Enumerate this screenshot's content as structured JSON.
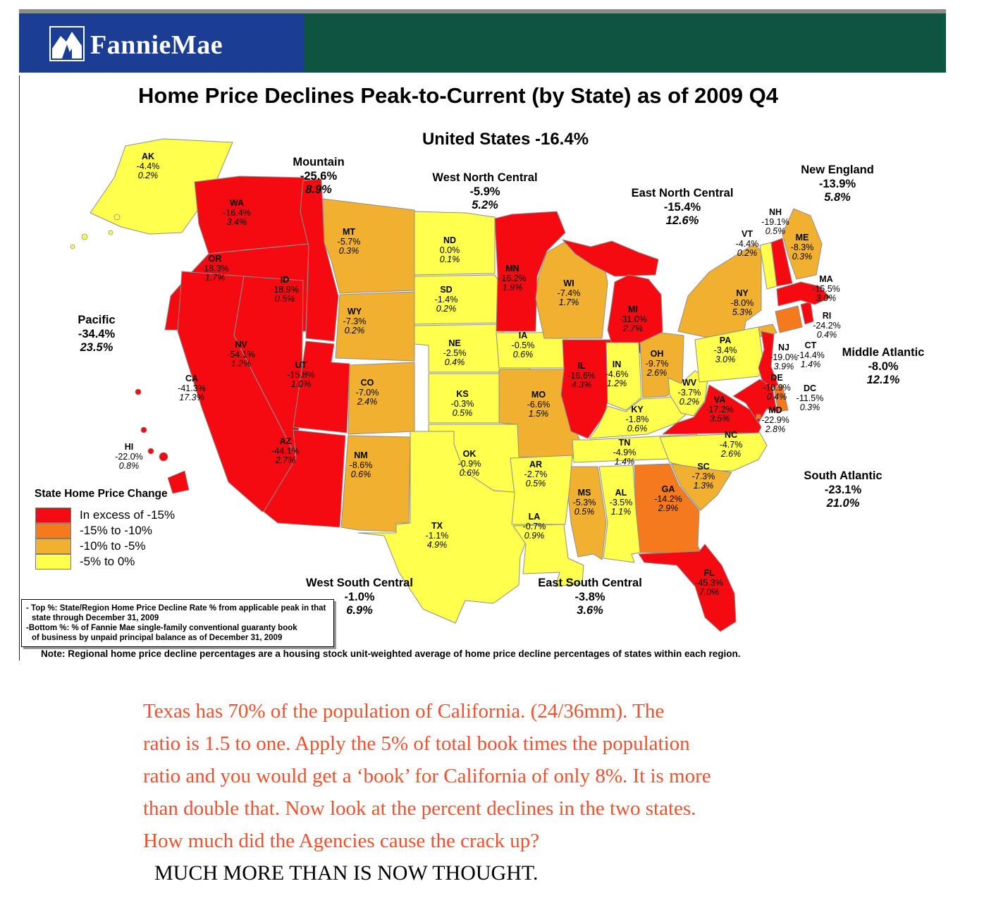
{
  "header": {
    "brand": "FannieMae",
    "brand_blue": "#1c3d94",
    "bar_green": "#0e5441",
    "strip_gray": "#8d8d8d"
  },
  "title": "Home Price Declines Peak-to-Current (by State) as of 2009 Q4",
  "subtitle": "United States -16.4%",
  "chart_data": {
    "type": "choropleth_map",
    "title": "Home Price Declines Peak-to-Current (by State) as of 2009 Q4",
    "national": {
      "label": "United States",
      "decline": "-16.4%"
    },
    "legend": {
      "title": "State Home Price Change",
      "items": [
        {
          "key": "gt15",
          "label": "In excess of -15%",
          "color": "#f40a10"
        },
        {
          "key": "n15to10",
          "label": "-15% to -10%",
          "color": "#f5791d"
        },
        {
          "key": "n10to5",
          "label": "-10% to -5%",
          "color": "#f1b02f"
        },
        {
          "key": "n5to0",
          "label": "-5% to 0%",
          "color": "#ffff4d"
        }
      ]
    },
    "regions": [
      {
        "id": "pacific",
        "name": "Pacific",
        "decline": "-34.4%",
        "book": "23.5%"
      },
      {
        "id": "mountain",
        "name": "Mountain",
        "decline": "-25.6%",
        "book": "8.9%"
      },
      {
        "id": "wnc",
        "name": "West North Central",
        "decline": "-5.9%",
        "book": "5.2%"
      },
      {
        "id": "enc",
        "name": "East North Central",
        "decline": "-15.4%",
        "book": "12.6%"
      },
      {
        "id": "ne",
        "name": "New England",
        "decline": "-13.9%",
        "book": "5.8%"
      },
      {
        "id": "ma",
        "name": "Middle Atlantic",
        "decline": "-8.0%",
        "book": "12.1%"
      },
      {
        "id": "sa",
        "name": "South Atlantic",
        "decline": "-23.1%",
        "book": "21.0%"
      },
      {
        "id": "wsc",
        "name": "West South Central",
        "decline": "-1.0%",
        "book": "6.9%"
      },
      {
        "id": "esc",
        "name": "East South Central",
        "decline": "-3.8%",
        "book": "3.6%"
      }
    ],
    "states": [
      {
        "code": "AK",
        "decline": "-4.4%",
        "book": "0.2%",
        "category": "n5to0"
      },
      {
        "code": "WA",
        "decline": "-16.4%",
        "book": "3.4%",
        "category": "gt15"
      },
      {
        "code": "OR",
        "decline": "-18.3%",
        "book": "1.7%",
        "category": "gt15"
      },
      {
        "code": "CA",
        "decline": "-41.3%",
        "book": "17.3%",
        "category": "gt15"
      },
      {
        "code": "NV",
        "decline": "-54.1%",
        "book": "1.2%",
        "category": "gt15"
      },
      {
        "code": "ID",
        "decline": "-18.9%",
        "book": "0.5%",
        "category": "gt15"
      },
      {
        "code": "MT",
        "decline": "-5.7%",
        "book": "0.3%",
        "category": "n10to5"
      },
      {
        "code": "WY",
        "decline": "-7.3%",
        "book": "0.2%",
        "category": "n10to5"
      },
      {
        "code": "UT",
        "decline": "-15.8%",
        "book": "1.0%",
        "category": "gt15"
      },
      {
        "code": "CO",
        "decline": "-7.0%",
        "book": "2.4%",
        "category": "n10to5"
      },
      {
        "code": "AZ",
        "decline": "-44.1%",
        "book": "2.7%",
        "category": "gt15"
      },
      {
        "code": "NM",
        "decline": "-8.6%",
        "book": "0.6%",
        "category": "n10to5"
      },
      {
        "code": "HI",
        "decline": "-22.0%",
        "book": "0.8%",
        "category": "gt15"
      },
      {
        "code": "ND",
        "decline": "0.0%",
        "book": "0.1%",
        "category": "n5to0"
      },
      {
        "code": "SD",
        "decline": "-1.4%",
        "book": "0.2%",
        "category": "n5to0"
      },
      {
        "code": "NE",
        "decline": "-2.5%",
        "book": "0.4%",
        "category": "n5to0"
      },
      {
        "code": "KS",
        "decline": "-0.3%",
        "book": "0.5%",
        "category": "n5to0"
      },
      {
        "code": "OK",
        "decline": "-0.9%",
        "book": "0.6%",
        "category": "n5to0"
      },
      {
        "code": "TX",
        "decline": "-1.1%",
        "book": "4.9%",
        "category": "n5to0"
      },
      {
        "code": "MN",
        "decline": "-16.2%",
        "book": "1.9%",
        "category": "gt15"
      },
      {
        "code": "IA",
        "decline": "-0.5%",
        "book": "0.6%",
        "category": "n5to0"
      },
      {
        "code": "MO",
        "decline": "-6.6%",
        "book": "1.5%",
        "category": "n10to5"
      },
      {
        "code": "WI",
        "decline": "-7.4%",
        "book": "1.7%",
        "category": "n10to5"
      },
      {
        "code": "IL",
        "decline": "-16.6%",
        "book": "4.3%",
        "category": "gt15"
      },
      {
        "code": "MI",
        "decline": "-31.0%",
        "book": "2.7%",
        "category": "gt15"
      },
      {
        "code": "IN",
        "decline": "-4.6%",
        "book": "1.2%",
        "category": "n5to0"
      },
      {
        "code": "OH",
        "decline": "-9.7%",
        "book": "2.6%",
        "category": "n10to5"
      },
      {
        "code": "KY",
        "decline": "-1.8%",
        "book": "0.6%",
        "category": "n5to0"
      },
      {
        "code": "TN",
        "decline": "-4.9%",
        "book": "1.4%",
        "category": "n5to0"
      },
      {
        "code": "WV",
        "decline": "-3.7%",
        "book": "0.2%",
        "category": "n5to0"
      },
      {
        "code": "VA",
        "decline": "-17.2%",
        "book": "3.5%",
        "category": "gt15"
      },
      {
        "code": "NC",
        "decline": "-4.7%",
        "book": "2.6%",
        "category": "n5to0"
      },
      {
        "code": "SC",
        "decline": "-7.3%",
        "book": "1.3%",
        "category": "n10to5"
      },
      {
        "code": "GA",
        "decline": "-14.2%",
        "book": "2.9%",
        "category": "n15to10"
      },
      {
        "code": "AL",
        "decline": "-3.5%",
        "book": "1.1%",
        "category": "n5to0"
      },
      {
        "code": "MS",
        "decline": "-5.3%",
        "book": "0.5%",
        "category": "n10to5"
      },
      {
        "code": "AR",
        "decline": "-2.7%",
        "book": "0.5%",
        "category": "n5to0"
      },
      {
        "code": "LA",
        "decline": "-0.7%",
        "book": "0.9%",
        "category": "n5to0"
      },
      {
        "code": "FL",
        "decline": "-45.3%",
        "book": "7.0%",
        "category": "gt15"
      },
      {
        "code": "NY",
        "decline": "-8.0%",
        "book": "5.3%",
        "category": "n10to5"
      },
      {
        "code": "PA",
        "decline": "-3.4%",
        "book": "3.0%",
        "category": "n5to0"
      },
      {
        "code": "NJ",
        "decline": "-19.0%",
        "book": "3.9%",
        "category": "gt15"
      },
      {
        "code": "CT",
        "decline": "-14.4%",
        "book": "1.4%",
        "category": "n15to10"
      },
      {
        "code": "RI",
        "decline": "-24.2%",
        "book": "0.4%",
        "category": "gt15"
      },
      {
        "code": "MA",
        "decline": "-15.5%",
        "book": "3.0%",
        "category": "gt15"
      },
      {
        "code": "VT",
        "decline": "-4.4%",
        "book": "0.2%",
        "category": "n5to0"
      },
      {
        "code": "NH",
        "decline": "-19.1%",
        "book": "0.5%",
        "category": "gt15"
      },
      {
        "code": "ME",
        "decline": "-8.3%",
        "book": "0.3%",
        "category": "n10to5"
      },
      {
        "code": "DE",
        "decline": "-10.9%",
        "book": "0.4%",
        "category": "n15to10"
      },
      {
        "code": "MD",
        "decline": "-22.9%",
        "book": "2.8%",
        "category": "gt15"
      },
      {
        "code": "DC",
        "decline": "-11.5%",
        "book": "0.3%",
        "category": "n15to10"
      }
    ]
  },
  "footnote_box": {
    "lines": [
      "- Top %:  State/Region Home Price Decline Rate % from applicable peak in that",
      "state through December 31, 2009",
      "-Bottom %:   % of Fannie Mae single-family conventional guaranty book",
      "of  business by unpaid principal balance as of December 31, 2009"
    ]
  },
  "note": "Note: Regional home price decline percentages are a housing stock unit-weighted average of home price decline percentages of states within each region.",
  "commentary": {
    "color": "#f0502d",
    "lines": [
      "Texas has 70% of the population of California. (24/36mm). The",
      "ratio is 1.5 to one. Apply the 5% of total book times the population",
      "ratio and you would get a ‘book’ for California of only 8%. It is more",
      "than double that. Now look at the percent declines in the two states.",
      "How much did the Agencies cause the crack up?"
    ],
    "conclusion": "MUCH MORE THAN IS NOW THOUGHT."
  }
}
